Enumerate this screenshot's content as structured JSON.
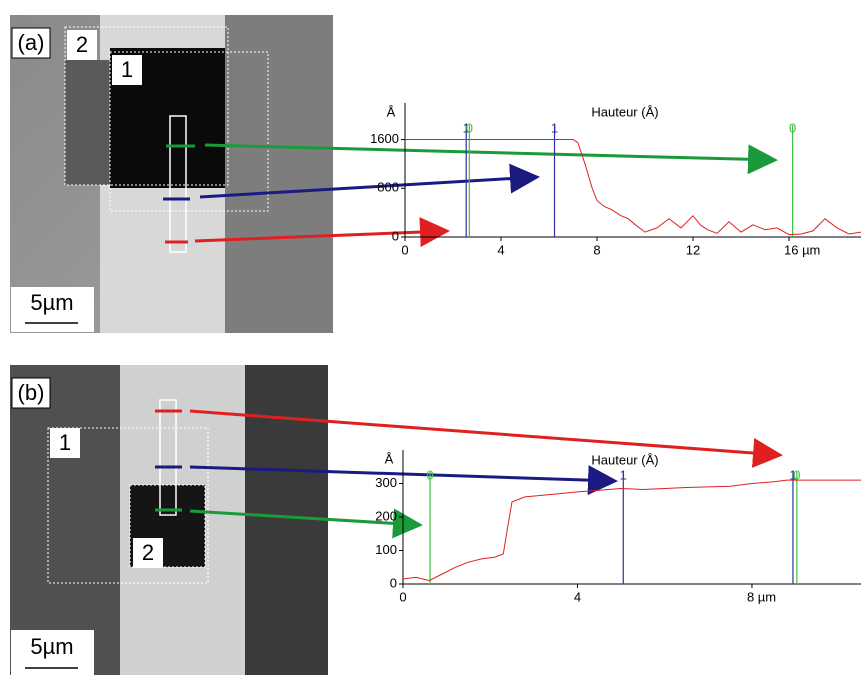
{
  "panels": [
    {
      "label": "(a)",
      "scale_bar": "5µm",
      "regions": [
        "2",
        "1"
      ]
    },
    {
      "label": "(b)",
      "scale_bar": "5µm",
      "regions": [
        "1",
        "2"
      ]
    }
  ],
  "chart_data": [
    {
      "type": "line",
      "title": "Hauteur (Å)",
      "y_label": "Å",
      "color": "#e02020",
      "x": [
        0,
        1,
        2,
        3,
        4,
        5,
        6,
        7,
        7.2,
        7.5,
        7.8,
        8,
        8.3,
        8.6,
        9,
        9.3,
        9.6,
        10,
        10.5,
        11,
        11.5,
        12,
        12.3,
        12.6,
        13,
        13.5,
        14,
        14.5,
        15,
        15.5,
        16,
        16.5,
        17,
        17.5,
        18,
        18.5,
        19
      ],
      "values": [
        1600,
        1600,
        1600,
        1600,
        1600,
        1600,
        1600,
        1600,
        1550,
        1200,
        800,
        600,
        500,
        450,
        350,
        300,
        200,
        80,
        150,
        300,
        150,
        350,
        200,
        120,
        60,
        250,
        80,
        200,
        120,
        150,
        40,
        50,
        100,
        300,
        150,
        50,
        80
      ],
      "xlim": [
        0,
        19
      ],
      "ylim": [
        0,
        2200
      ],
      "xticks": [
        0,
        4,
        8,
        12,
        {
          "value": 16,
          "label": "16 µm"
        }
      ],
      "yticks": [
        0,
        800,
        1600
      ],
      "markers": [
        {
          "label": "1",
          "x": 2.55,
          "color": "#3030a0"
        },
        {
          "label": "0",
          "x": 2.68,
          "color": "#40c040"
        },
        {
          "label": "1",
          "x": 6.23,
          "color": "#3030a0"
        },
        {
          "label": "0",
          "x": 16.15,
          "color": "#40c040"
        }
      ]
    },
    {
      "type": "line",
      "title": "Hauteur (Å)",
      "y_label": "Å",
      "color": "#e02020",
      "x": [
        0,
        0.3,
        0.6,
        0.9,
        1.2,
        1.5,
        1.8,
        2.1,
        2.3,
        2.4,
        2.5,
        2.8,
        3.2,
        3.6,
        4,
        4.5,
        5,
        5.5,
        6,
        6.5,
        7,
        7.5,
        8,
        8.5,
        8.8,
        9,
        9.5,
        10,
        10.5
      ],
      "values": [
        15,
        20,
        10,
        30,
        50,
        65,
        75,
        80,
        90,
        170,
        245,
        260,
        265,
        270,
        275,
        280,
        285,
        282,
        285,
        288,
        290,
        292,
        300,
        305,
        310,
        310,
        310,
        310,
        310
      ],
      "xlim": [
        0,
        10.5
      ],
      "ylim": [
        0,
        400
      ],
      "xticks": [
        0,
        4,
        {
          "value": 8,
          "label": "8 µm"
        }
      ],
      "yticks": [
        0,
        100,
        200,
        300
      ],
      "markers": [
        {
          "label": "0",
          "x": 0.62,
          "color": "#40c040"
        },
        {
          "label": "1",
          "x": 5.05,
          "color": "#3030a0"
        },
        {
          "label": "1",
          "x": 8.94,
          "color": "#3030a0"
        },
        {
          "label": "0",
          "x": 9.03,
          "color": "#40c040"
        }
      ]
    }
  ]
}
